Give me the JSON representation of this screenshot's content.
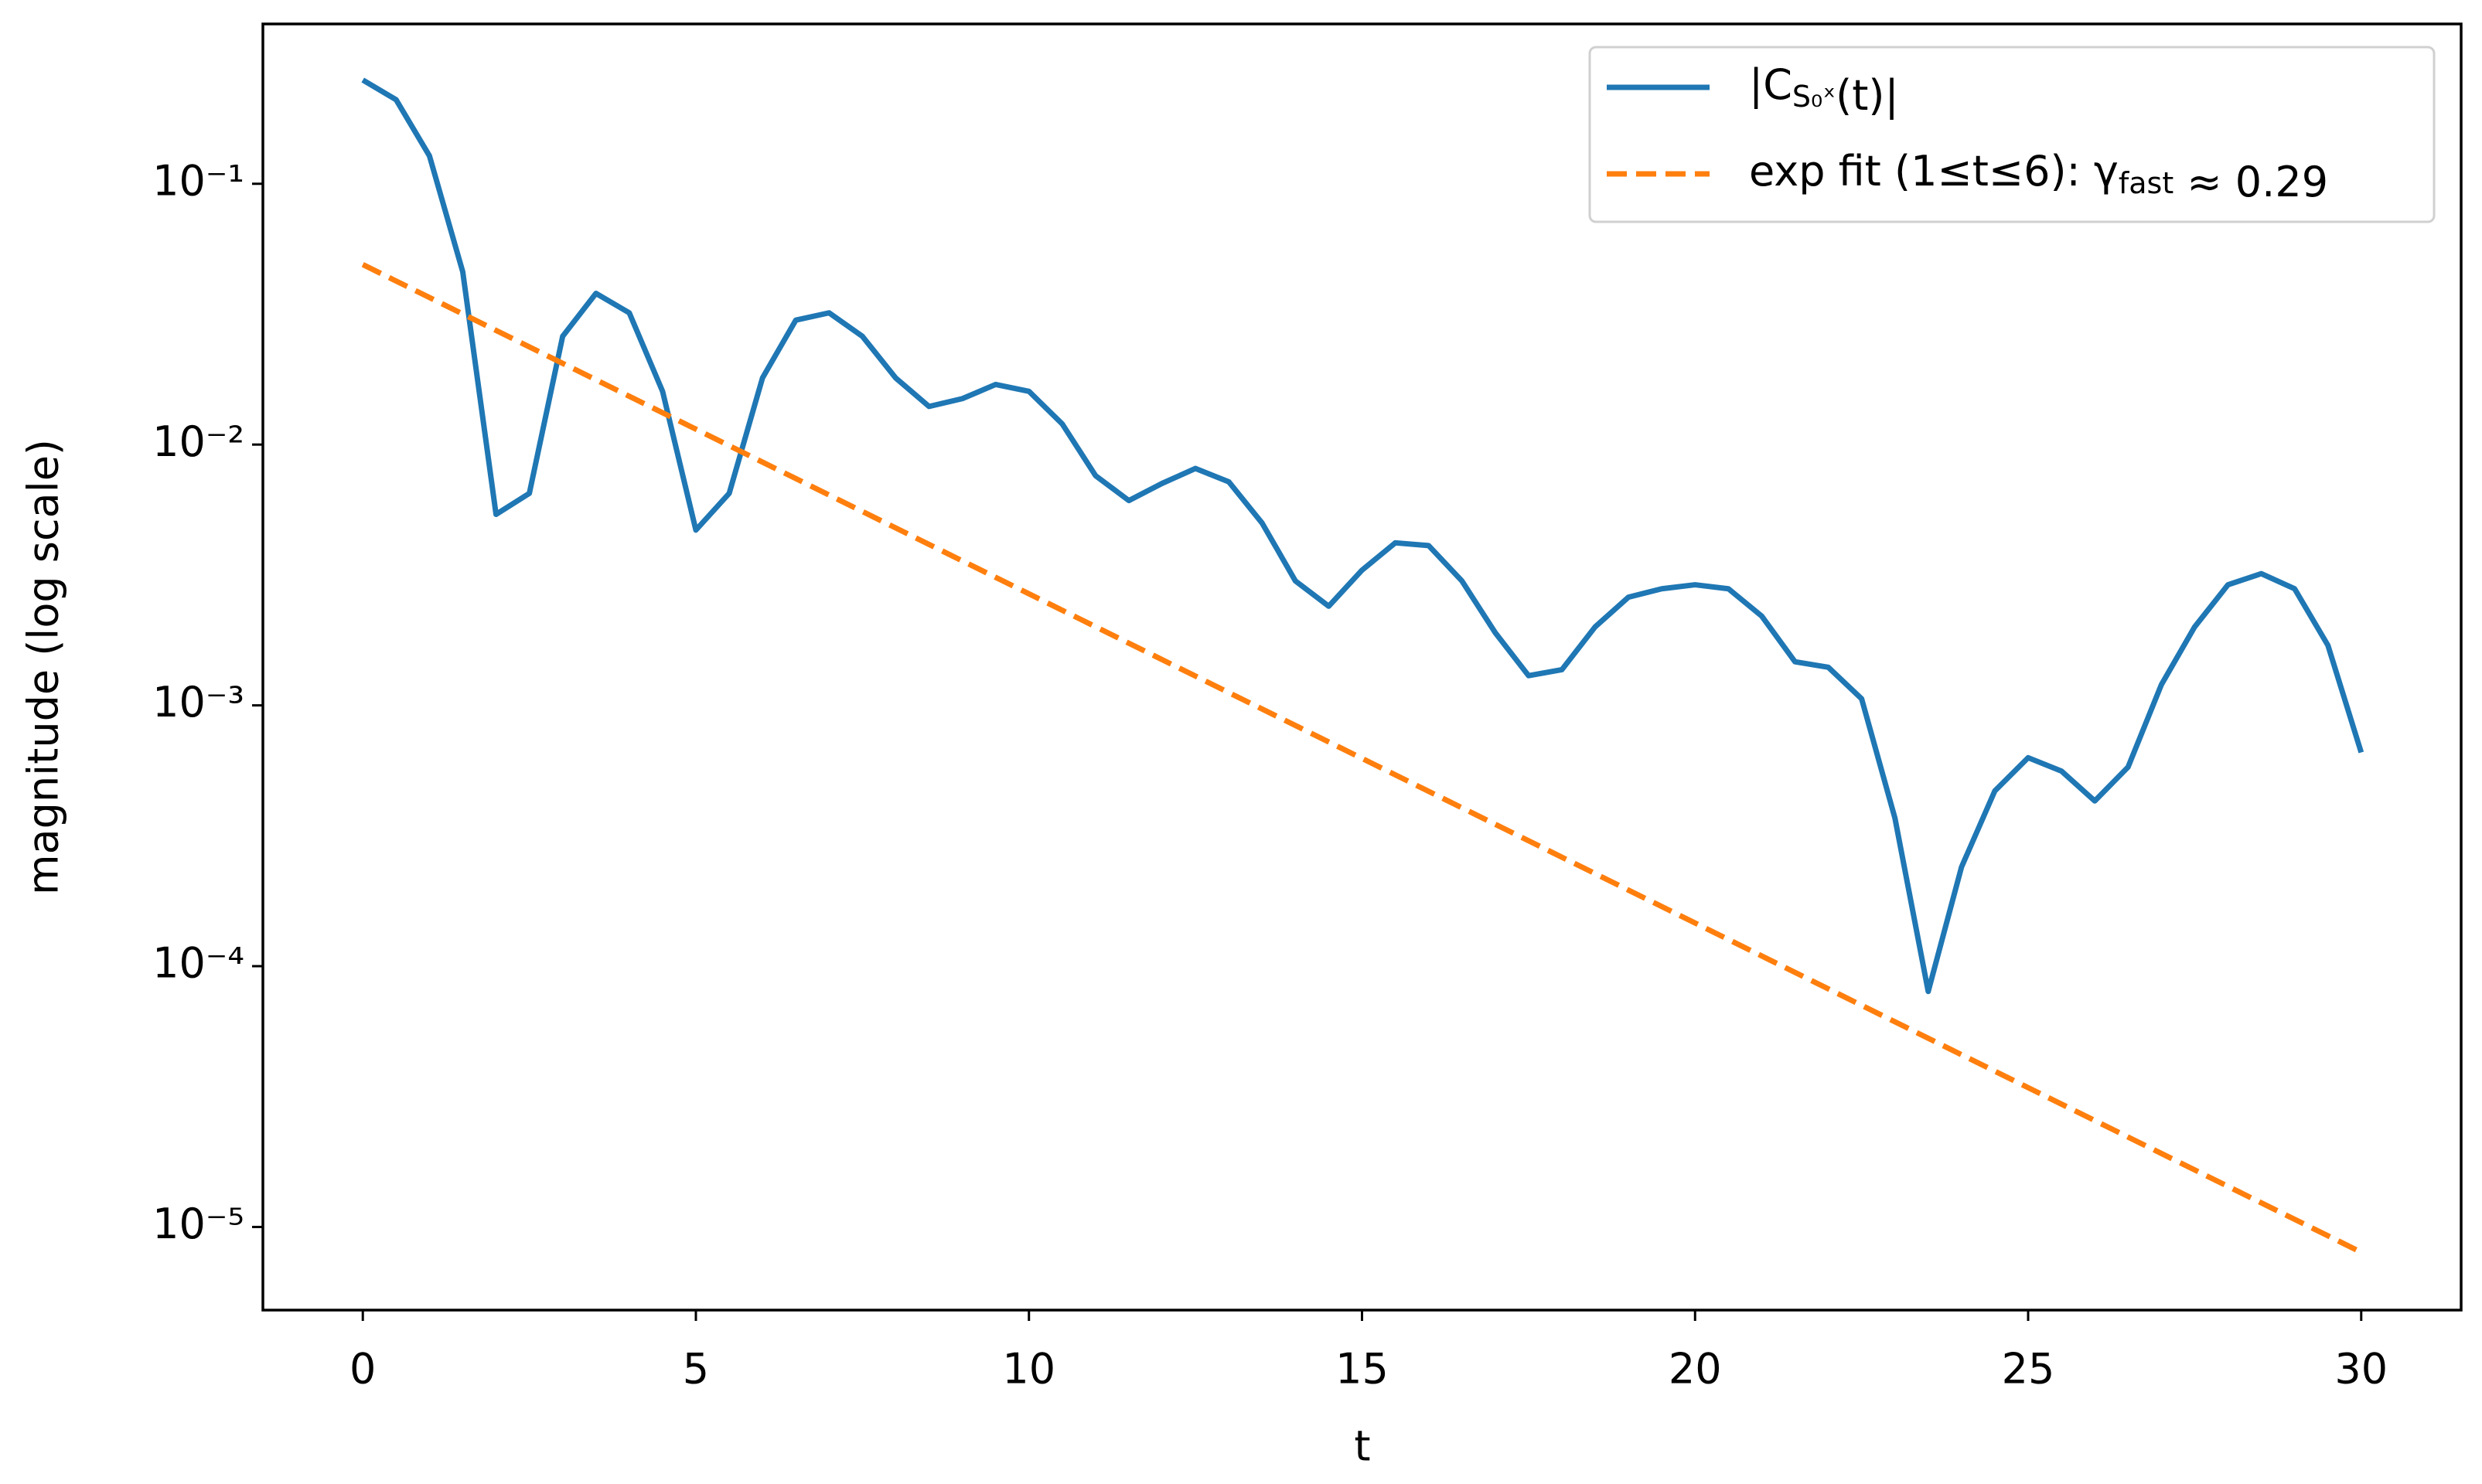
{
  "chart_data": {
    "type": "line",
    "xlabel": "t",
    "ylabel": "magnitude (log scale)",
    "yscale": "log",
    "xlim": [
      -1.5,
      31.5
    ],
    "xticks": [
      0,
      5,
      10,
      15,
      20,
      25,
      30
    ],
    "ylim": [
      4.8e-06,
      0.41
    ],
    "yticks": [
      {
        "value": 0.1,
        "label": "10⁻¹"
      },
      {
        "value": 0.01,
        "label": "10⁻²"
      },
      {
        "value": 0.001,
        "label": "10⁻³"
      },
      {
        "value": 0.0001,
        "label": "10⁻⁴"
      },
      {
        "value": 1e-05,
        "label": "10⁻⁵"
      }
    ],
    "legend": "upper right",
    "series": [
      {
        "name": "|C_{S₀ˣ}(t)|",
        "color": "#1f77b4",
        "dash": false,
        "x": [
          0,
          0.5,
          1,
          1.5,
          2,
          2.5,
          3,
          3.5,
          4,
          4.5,
          5,
          5.5,
          6,
          6.5,
          7,
          7.5,
          8,
          8.5,
          9,
          9.5,
          10,
          10.5,
          11,
          11.5,
          12,
          12.5,
          13,
          13.5,
          14,
          14.5,
          15,
          15.5,
          16,
          16.5,
          17,
          17.5,
          18,
          18.5,
          19,
          19.5,
          20,
          20.5,
          21,
          21.5,
          22,
          22.5,
          23,
          23.5,
          24,
          24.5,
          25,
          25.5,
          26,
          26.5,
          27,
          27.5,
          28,
          28.5,
          29,
          29.5,
          30
        ],
        "values": [
          0.25,
          0.21,
          0.128,
          0.046,
          0.0054,
          0.0065,
          0.026,
          0.038,
          0.032,
          0.016,
          0.0047,
          0.0065,
          0.018,
          0.03,
          0.032,
          0.026,
          0.018,
          0.014,
          0.015,
          0.017,
          0.016,
          0.012,
          0.0076,
          0.0061,
          0.0071,
          0.0081,
          0.0072,
          0.005,
          0.003,
          0.0024,
          0.0033,
          0.0042,
          0.0041,
          0.003,
          0.0019,
          0.0013,
          0.00137,
          0.002,
          0.0026,
          0.0028,
          0.0029,
          0.0028,
          0.0022,
          0.00147,
          0.0014,
          0.00106,
          0.00037,
          8e-05,
          0.00024,
          0.00047,
          0.00063,
          0.00056,
          0.00043,
          0.00058,
          0.0012,
          0.002,
          0.0029,
          0.0032,
          0.0028,
          0.0017,
          0.00066
        ]
      },
      {
        "name": "exp fit (1≤t≤6): γ_{fast} ≈ 0.29",
        "color": "#ff7f0e",
        "dash": true,
        "x": [
          0,
          30
        ],
        "values": [
          0.049,
          8e-06
        ]
      }
    ]
  }
}
